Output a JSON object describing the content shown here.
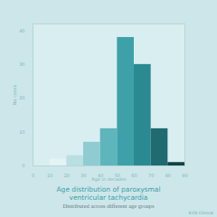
{
  "chart_data": {
    "type": "histogram",
    "title": "Age distribution of paroxysmal ventricular tachycardia",
    "subtitle": "Distributed across different age groups",
    "source": "ECG Clinical",
    "x_label": "Age in decades",
    "y_label": "No cases",
    "bins": [
      10,
      20,
      30,
      40,
      50,
      60,
      70,
      80,
      90
    ],
    "values": [
      2,
      3,
      7,
      11,
      38,
      30,
      11,
      1
    ],
    "colors": [
      "#e6f3f3",
      "#b9dfe2",
      "#8fccd1",
      "#5fb5bc",
      "#3ea1a9",
      "#2b8a91",
      "#1f6b70",
      "#0f4346"
    ],
    "xlim": [
      0,
      90
    ],
    "xticks": [
      0,
      10,
      20,
      30,
      40,
      50,
      60,
      70,
      80,
      90
    ],
    "ylim": [
      0,
      42
    ],
    "yticks": [
      0,
      10,
      20,
      30,
      40
    ],
    "grid": false
  }
}
